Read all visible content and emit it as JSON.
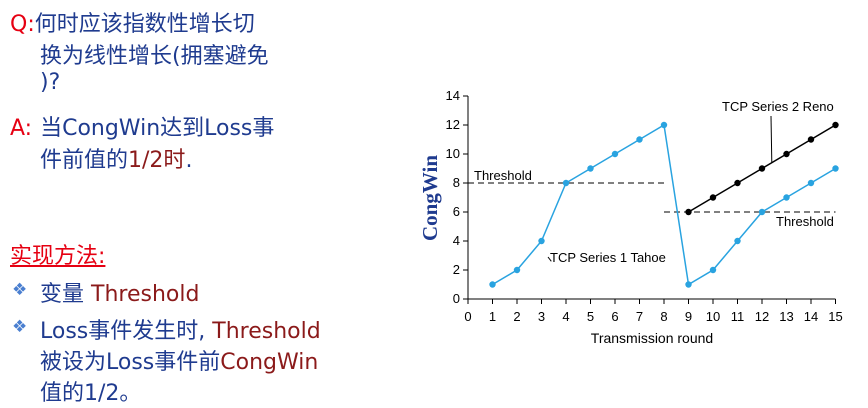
{
  "left": {
    "question": {
      "label": "Q:",
      "line1": "何时应该指数性增长切",
      "line2": "换为线性增长(拥塞避免",
      "line3": ")?"
    },
    "answer": {
      "label": "A:",
      "line1_prefix": "当CongWin达到Loss事",
      "line2_prefix": "件前值的",
      "line2_highlight": "1/2时",
      "line2_suffix": "."
    },
    "implementation": {
      "title": "实现方法:",
      "bullets": [
        {
          "prefix": "变量 ",
          "highlight": "Threshold",
          "suffix": ""
        },
        {
          "line1_prefix": "Loss事件发生时, ",
          "line1_highlight": "Threshold",
          "line2_prefix": "被设为Loss事件前",
          "line2_highlight": "CongWin",
          "line3": "值的1/2。"
        }
      ]
    }
  },
  "chart_data": {
    "type": "line",
    "title": "",
    "xlabel": "Transmission round",
    "ylabel": "CongWin",
    "xlim": [
      0,
      15
    ],
    "ylim": [
      0,
      14
    ],
    "x_ticks": [
      0,
      1,
      2,
      3,
      4,
      5,
      6,
      7,
      8,
      9,
      10,
      11,
      12,
      13,
      14,
      15
    ],
    "y_ticks": [
      0,
      2,
      4,
      6,
      8,
      10,
      12,
      14
    ],
    "series": [
      {
        "name": "TCP Series 1 Tahoe",
        "color": "#29a3e0",
        "x": [
          1,
          2,
          3,
          4,
          5,
          6,
          7,
          8,
          9,
          10,
          11,
          12,
          13,
          14,
          15
        ],
        "y": [
          1,
          2,
          4,
          8,
          9,
          10,
          11,
          12,
          1,
          2,
          4,
          6,
          7,
          8,
          9
        ]
      },
      {
        "name": "TCP Series 2 Reno",
        "color": "#000000",
        "x": [
          9,
          10,
          11,
          12,
          13,
          14,
          15
        ],
        "y": [
          6,
          7,
          8,
          9,
          10,
          11,
          12
        ]
      }
    ],
    "thresholds": [
      {
        "label": "Threshold",
        "y": 8,
        "x_range": [
          0,
          8
        ]
      },
      {
        "label": "Threshold",
        "y": 6,
        "x_range": [
          8,
          15
        ]
      }
    ],
    "grid": false
  }
}
